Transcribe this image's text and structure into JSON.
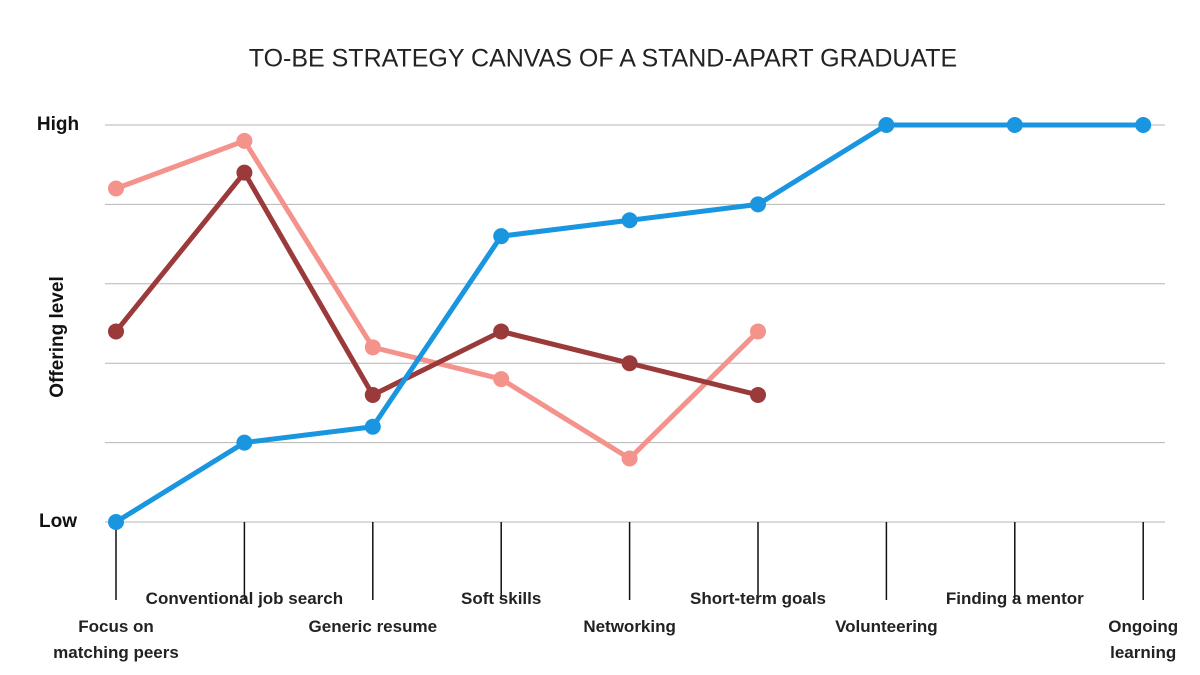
{
  "chart_data": {
    "type": "line",
    "title": "TO-BE STRATEGY CANVAS OF A STAND-APART GRADUATE",
    "y_label": "Offering level",
    "categories": [
      "Focus on\nmatching peers",
      "Conventional job search",
      "Generic resume",
      "Soft skills",
      "Networking",
      "Short-term goals",
      "Volunteering",
      "Finding a mentor",
      "Ongoing\nlearning"
    ],
    "series": [
      {
        "color": "#f4928c",
        "values": [
          4.2,
          4.8,
          2.2,
          1.8,
          0.8,
          2.4,
          null,
          null,
          null
        ]
      },
      {
        "color": "#9a3a3a",
        "values": [
          2.4,
          4.4,
          1.6,
          2.4,
          2.0,
          1.6,
          null,
          null,
          null
        ]
      },
      {
        "color": "#1a96e0",
        "values": [
          0,
          1,
          1.2,
          3.6,
          3.8,
          4,
          5,
          5,
          5
        ]
      }
    ],
    "ylim": [
      0,
      5
    ],
    "yticks": [
      {
        "value": 0,
        "label": "Low"
      },
      {
        "value": 5,
        "label": "High"
      }
    ],
    "ygrid": [
      0,
      1,
      2,
      3,
      4,
      5
    ],
    "grid": true
  }
}
